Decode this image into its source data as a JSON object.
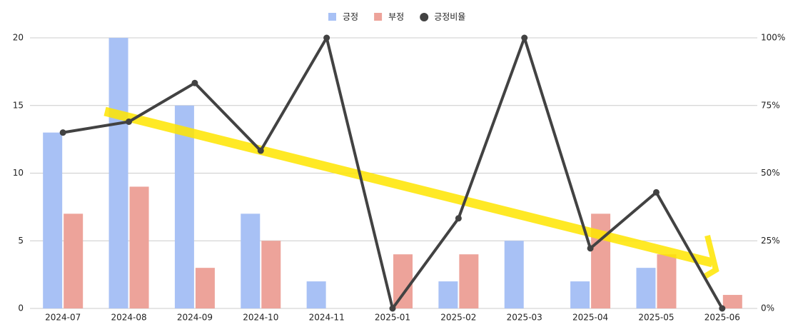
{
  "chart_data": {
    "type": "bar_line",
    "categories": [
      "2024-07",
      "2024-08",
      "2024-09",
      "2024-10",
      "2024-11",
      "2025-01",
      "2025-02",
      "2025-03",
      "2025-04",
      "2025-05",
      "2025-06"
    ],
    "series": [
      {
        "name": "긍정",
        "color": "#a8c1f5",
        "type": "bar",
        "values": [
          13,
          20,
          15,
          7,
          2,
          0,
          2,
          5,
          2,
          3,
          0
        ]
      },
      {
        "name": "부정",
        "color": "#eda39a",
        "type": "bar",
        "values": [
          7,
          9,
          3,
          5,
          0,
          4,
          4,
          0,
          7,
          4,
          1
        ]
      },
      {
        "name": "긍정비율",
        "color": "#424242",
        "type": "line",
        "axis": "y2",
        "values": [
          65,
          69,
          83.3,
          58.3,
          100,
          0,
          33.3,
          100,
          22.2,
          42.9,
          0
        ]
      }
    ],
    "ylim": [
      0,
      20
    ],
    "yticks": [
      0,
      5,
      10,
      15,
      20
    ],
    "y2lim": [
      0,
      100
    ],
    "y2ticks": [
      {
        "value": 0,
        "label": "0%"
      },
      {
        "value": 25,
        "label": "25%"
      },
      {
        "value": 50,
        "label": "50%"
      },
      {
        "value": 75,
        "label": "75%"
      },
      {
        "value": 100,
        "label": "100%"
      }
    ],
    "grid": true,
    "legend": "top"
  }
}
